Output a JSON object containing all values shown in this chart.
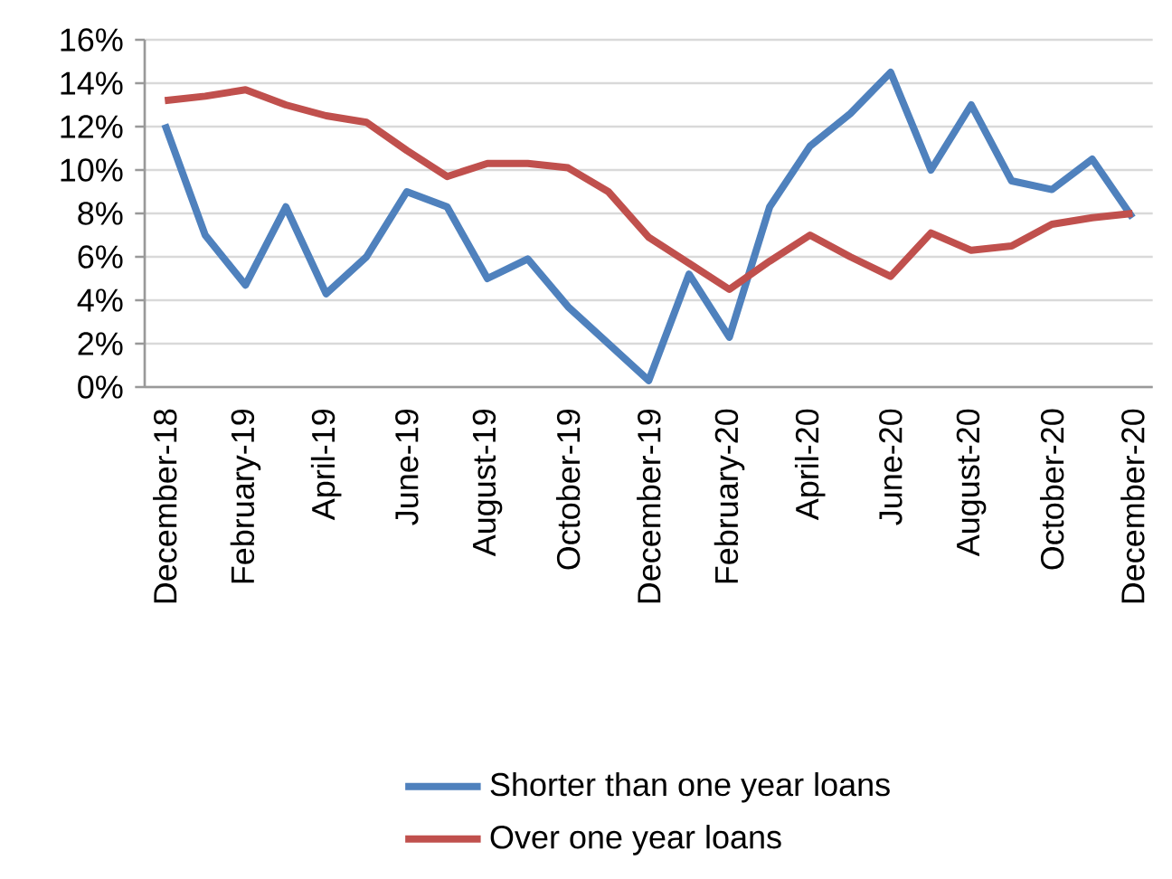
{
  "chart_data": {
    "type": "line",
    "categories": [
      "December-18",
      null,
      "February-19",
      null,
      "April-19",
      null,
      "June-19",
      null,
      "August-19",
      null,
      "October-19",
      null,
      "December-19",
      null,
      "February-20",
      null,
      "April-20",
      null,
      "June-20",
      null,
      "August-20",
      null,
      "October-20",
      null,
      "December-20"
    ],
    "series": [
      {
        "name": "Shorter than one year loans",
        "color": "#4f81bd",
        "values": [
          12.1,
          7.0,
          4.7,
          8.3,
          4.3,
          6.0,
          9.0,
          8.3,
          5.0,
          5.9,
          3.7,
          2.0,
          0.3,
          5.2,
          2.3,
          8.3,
          11.1,
          12.6,
          14.5,
          10.0,
          13.0,
          9.5,
          9.1,
          10.5,
          7.8
        ]
      },
      {
        "name": "Over one year loans",
        "color": "#c0504d",
        "values": [
          13.2,
          13.4,
          13.7,
          13.0,
          12.5,
          12.2,
          10.9,
          9.7,
          10.3,
          10.3,
          10.1,
          9.0,
          6.9,
          5.7,
          4.5,
          5.8,
          7.0,
          6.0,
          5.1,
          7.1,
          6.3,
          6.5,
          7.5,
          7.8,
          8.0
        ]
      }
    ],
    "ylim": [
      0,
      16
    ],
    "yticks": [
      {
        "value": 0,
        "label": "0%"
      },
      {
        "value": 2,
        "label": "2%"
      },
      {
        "value": 4,
        "label": "4%"
      },
      {
        "value": 6,
        "label": "6%"
      },
      {
        "value": 8,
        "label": "8%"
      },
      {
        "value": 10,
        "label": "10%"
      },
      {
        "value": 12,
        "label": "12%"
      },
      {
        "value": 14,
        "label": "14%"
      },
      {
        "value": 16,
        "label": "16%"
      }
    ],
    "grid": "y",
    "legend": "bottom",
    "marker": "none",
    "line_style": "solid"
  }
}
